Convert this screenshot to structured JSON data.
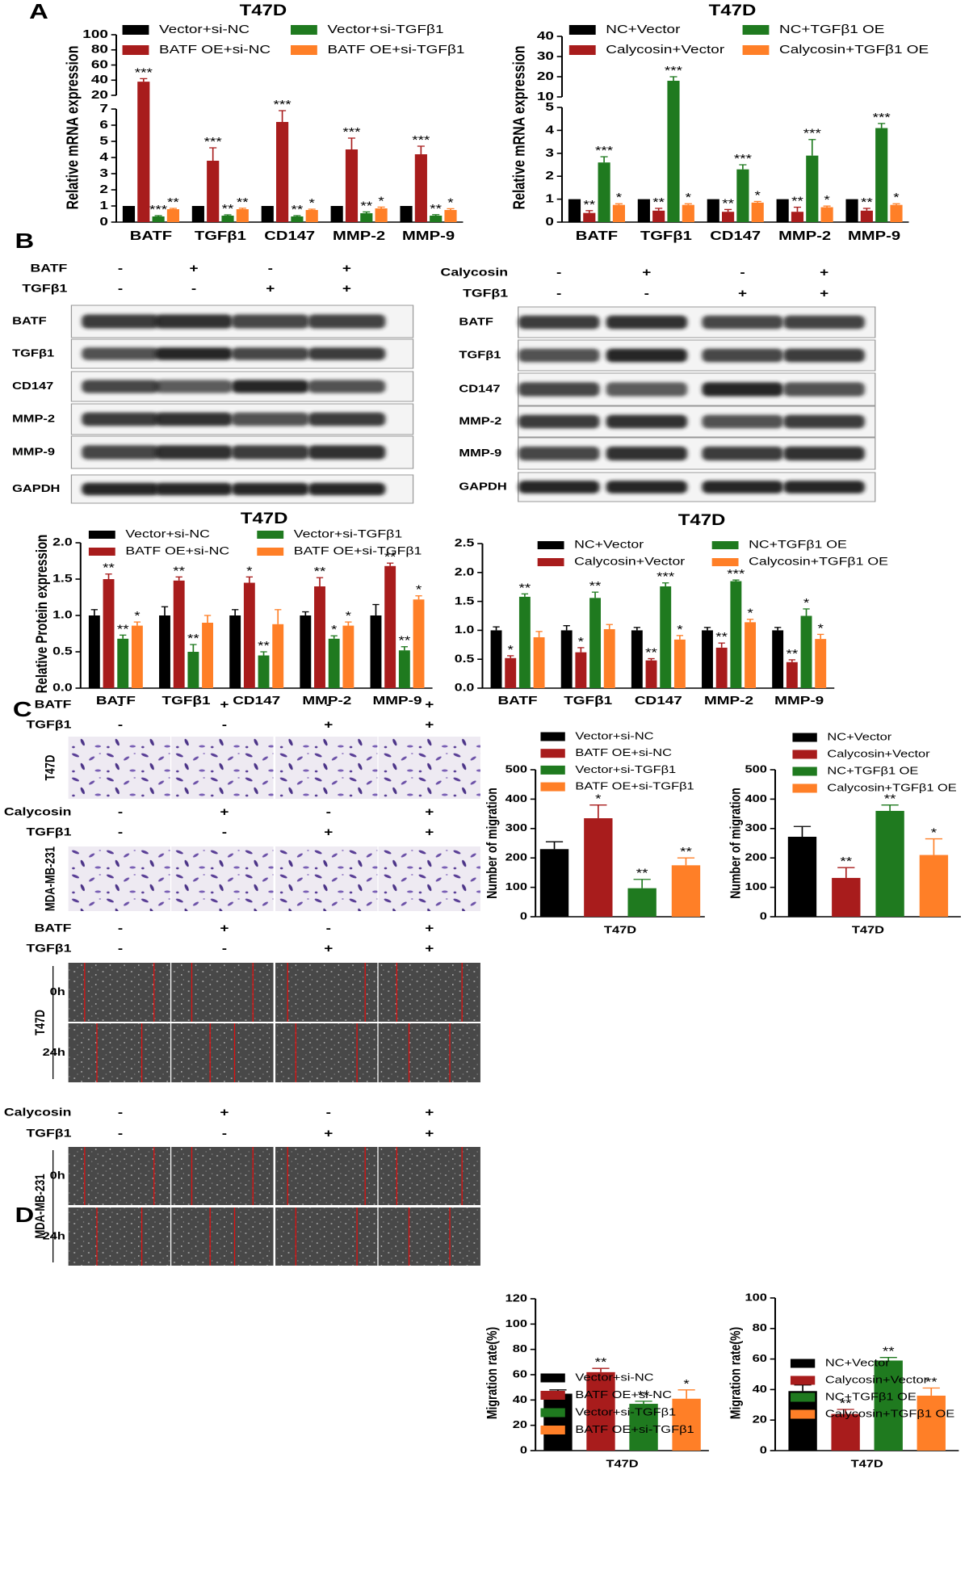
{
  "figure": {
    "panel_letters": [
      "A",
      "B",
      "C",
      "D"
    ],
    "blots": [
      {
        "conditions": [
          {
            "label": "BATF",
            "signs": [
              "-",
              "+",
              "-",
              "+"
            ]
          },
          {
            "label": "TGFβ1",
            "signs": [
              "-",
              "-",
              "+",
              "+"
            ]
          }
        ],
        "bands": [
          "BATF",
          "TGFβ1",
          "CD147",
          "MMP-2",
          "MMP-9",
          "GAPDH"
        ]
      },
      {
        "conditions": [
          {
            "label": "Calycosin",
            "signs": [
              "-",
              "+",
              "-",
              "+"
            ]
          },
          {
            "label": "TGFβ1",
            "signs": [
              "-",
              "-",
              "+",
              "+"
            ]
          }
        ],
        "bands": [
          "BATF",
          "TGFβ1",
          "CD147",
          "MMP-2",
          "MMP-9",
          "GAPDH"
        ]
      }
    ],
    "transwell": [
      {
        "cell_line": "T47D",
        "conditions": [
          {
            "label": "BATF",
            "signs": [
              "-",
              "+",
              "-",
              "+"
            ]
          },
          {
            "label": "TGFβ1",
            "signs": [
              "-",
              "-",
              "+",
              "+"
            ]
          }
        ]
      },
      {
        "cell_line": "MDA-MB-231",
        "conditions": [
          {
            "label": "Calycosin",
            "signs": [
              "-",
              "+",
              "-",
              "+"
            ]
          },
          {
            "label": "TGFβ1",
            "signs": [
              "-",
              "-",
              "+",
              "+"
            ]
          }
        ]
      }
    ],
    "wound_healing": [
      {
        "cell_line": "T47D",
        "times": [
          "0h",
          "24h"
        ],
        "conditions": [
          {
            "label": "BATF",
            "signs": [
              "-",
              "+",
              "-",
              "+"
            ]
          },
          {
            "label": "TGFβ1",
            "signs": [
              "-",
              "-",
              "+",
              "+"
            ]
          }
        ]
      },
      {
        "cell_line": "MDA-MB-231",
        "times": [
          "0h",
          "24h"
        ],
        "conditions": [
          {
            "label": "Calycosin",
            "signs": [
              "-",
              "+",
              "-",
              "+"
            ]
          },
          {
            "label": "TGFβ1",
            "signs": [
              "-",
              "-",
              "+",
              "+"
            ]
          }
        ]
      }
    ]
  },
  "chart_data": [
    {
      "type": "bar",
      "title": "T47D",
      "y_label": "Relative mRNA expression",
      "categories": [
        "BATF",
        "TGFβ1",
        "CD147",
        "MMP-2",
        "MMP-9"
      ],
      "series": [
        {
          "name": "Vector+si-NC",
          "color": "#000000",
          "values": [
            1,
            1,
            1,
            1,
            1
          ]
        },
        {
          "name": "BATF OE+si-NC",
          "color": "#a81c1c",
          "values": [
            38,
            3.8,
            6.2,
            4.5,
            4.2
          ],
          "errors": [
            4,
            0.8,
            0.7,
            0.7,
            0.5
          ],
          "significance": [
            "***",
            "***",
            "***",
            "***",
            "***"
          ]
        },
        {
          "name": "Vector+si-TGFβ1",
          "color": "#1f7a1f",
          "values": [
            0.35,
            0.4,
            0.35,
            0.55,
            0.4
          ],
          "errors": [
            0.05,
            0.05,
            0.05,
            0.08,
            0.06
          ],
          "significance": [
            "***",
            "**",
            "**",
            "**",
            "**"
          ]
        },
        {
          "name": "BATF OE+si-TGFβ1",
          "color": "#ff7f27",
          "values": [
            0.8,
            0.8,
            0.75,
            0.85,
            0.75
          ],
          "errors": [
            0.05,
            0.06,
            0.05,
            0.08,
            0.08
          ],
          "significance": [
            "**",
            "**",
            "*",
            "*",
            "*"
          ]
        }
      ],
      "ylim": [
        0,
        100
      ],
      "ybreak": [
        7,
        20
      ],
      "yticks": [
        0,
        1,
        2,
        3,
        4,
        5,
        6,
        7,
        20,
        40,
        60,
        80,
        100
      ]
    },
    {
      "type": "bar",
      "title": "T47D",
      "y_label": "Relative mRNA expression",
      "categories": [
        "BATF",
        "TGFβ1",
        "CD147",
        "MMP-2",
        "MMP-9"
      ],
      "series": [
        {
          "name": "NC+Vector",
          "color": "#000000",
          "values": [
            1,
            1,
            1,
            1,
            1
          ]
        },
        {
          "name": "Calycosin+Vector",
          "color": "#a81c1c",
          "values": [
            0.4,
            0.5,
            0.45,
            0.45,
            0.5
          ],
          "errors": [
            0.1,
            0.1,
            0.1,
            0.2,
            0.1
          ],
          "significance": [
            "**",
            "**",
            "**",
            "**",
            "**"
          ]
        },
        {
          "name": "NC+TGFβ1 OE",
          "color": "#1f7a1f",
          "values": [
            2.6,
            18,
            2.3,
            2.9,
            4.1
          ],
          "errors": [
            0.25,
            2,
            0.2,
            0.7,
            0.2
          ],
          "significance": [
            "***",
            "***",
            "***",
            "***",
            "***"
          ]
        },
        {
          "name": "Calycosin+TGFβ1 OE",
          "color": "#ff7f27",
          "values": [
            0.75,
            0.75,
            0.85,
            0.65,
            0.75
          ],
          "errors": [
            0.05,
            0.05,
            0.05,
            0.05,
            0.05
          ],
          "significance": [
            "*",
            "*",
            "*",
            "*",
            "*"
          ]
        }
      ],
      "ylim": [
        0,
        40
      ],
      "ybreak": [
        5,
        10
      ],
      "yticks": [
        0,
        1,
        2,
        3,
        4,
        5,
        10,
        20,
        30,
        40
      ]
    },
    {
      "type": "bar",
      "title": "T47D",
      "y_label": "Relative Protein expression",
      "categories": [
        "BATF",
        "TGFβ1",
        "CD147",
        "MMP-2",
        "MMP-9"
      ],
      "series": [
        {
          "name": "Vector+si-NC",
          "color": "#000000",
          "values": [
            1,
            1,
            1,
            1,
            1
          ],
          "errors": [
            0.08,
            0.12,
            0.08,
            0.05,
            0.15
          ]
        },
        {
          "name": "BATF OE+si-NC",
          "color": "#a81c1c",
          "values": [
            1.5,
            1.48,
            1.45,
            1.4,
            1.68
          ],
          "errors": [
            0.07,
            0.05,
            0.08,
            0.12,
            0.04
          ],
          "significance": [
            "**",
            "**",
            "*",
            "**",
            "**"
          ]
        },
        {
          "name": "Vector+si-TGFβ1",
          "color": "#1f7a1f",
          "values": [
            0.68,
            0.5,
            0.45,
            0.68,
            0.52
          ],
          "errors": [
            0.05,
            0.1,
            0.05,
            0.04,
            0.05
          ],
          "significance": [
            "**",
            "**",
            "**",
            "*",
            "**"
          ]
        },
        {
          "name": "BATF OE+si-TGFβ1",
          "color": "#ff7f27",
          "values": [
            0.86,
            0.9,
            0.88,
            0.86,
            1.22
          ],
          "errors": [
            0.05,
            0.1,
            0.2,
            0.05,
            0.05
          ],
          "significance": [
            "*",
            null,
            null,
            "*",
            "*"
          ]
        }
      ],
      "ylim": [
        0,
        2
      ],
      "yticks": [
        {
          "value": 0,
          "label": "0.0"
        },
        0.5,
        {
          "value": 1,
          "label": "1.0"
        },
        1.5,
        {
          "value": 2,
          "label": "2.0"
        }
      ]
    },
    {
      "type": "bar",
      "title": "T47D",
      "categories": [
        "BATF",
        "TGFβ1",
        "CD147",
        "MMP-2",
        "MMP-9"
      ],
      "series": [
        {
          "name": "NC+Vector",
          "color": "#000000",
          "values": [
            1,
            1,
            1,
            1,
            1
          ],
          "errors": [
            0.06,
            0.08,
            0.05,
            0.05,
            0.05
          ]
        },
        {
          "name": "Calycosin+Vector",
          "color": "#a81c1c",
          "values": [
            0.52,
            0.62,
            0.48,
            0.7,
            0.45
          ],
          "errors": [
            0.04,
            0.08,
            0.03,
            0.08,
            0.04
          ],
          "significance": [
            "*",
            "*",
            "**",
            "**",
            "**"
          ]
        },
        {
          "name": "NC+TGFβ1 OE",
          "color": "#1f7a1f",
          "values": [
            1.58,
            1.56,
            1.76,
            1.85,
            1.25
          ],
          "errors": [
            0.05,
            0.1,
            0.06,
            0.02,
            0.12
          ],
          "significance": [
            "**",
            "**",
            "***",
            "***",
            "*"
          ]
        },
        {
          "name": "Calycosin+TGFβ1 OE",
          "color": "#ff7f27",
          "values": [
            0.88,
            1.02,
            0.84,
            1.14,
            0.85
          ],
          "errors": [
            0.1,
            0.08,
            0.07,
            0.05,
            0.08
          ],
          "significance": [
            null,
            null,
            "*",
            "*",
            "*"
          ]
        }
      ],
      "ylim": [
        0,
        2.5
      ],
      "yticks": [
        {
          "value": 0,
          "label": "0.0"
        },
        0.5,
        {
          "value": 1,
          "label": "1.0"
        },
        1.5,
        {
          "value": 2,
          "label": "2.0"
        },
        2.5
      ]
    },
    {
      "type": "bar",
      "y_label": "Number of migration",
      "categories": [
        "T47D"
      ],
      "series": [
        {
          "name": "Vector+si-NC",
          "color": "#000000",
          "values": [
            230
          ],
          "errors": [
            25
          ]
        },
        {
          "name": "BATF OE+si-NC",
          "color": "#a81c1c",
          "values": [
            335
          ],
          "errors": [
            45
          ],
          "significance": [
            "*"
          ]
        },
        {
          "name": "Vector+si-TGFβ1",
          "color": "#1f7a1f",
          "values": [
            97
          ],
          "errors": [
            30
          ],
          "significance": [
            "**"
          ]
        },
        {
          "name": "BATF OE+si-TGFβ1",
          "color": "#ff7f27",
          "values": [
            175
          ],
          "errors": [
            25
          ],
          "significance": [
            "**"
          ]
        }
      ],
      "ylim": [
        0,
        500
      ],
      "yticks": [
        0,
        100,
        200,
        300,
        400,
        500
      ]
    },
    {
      "type": "bar",
      "y_label": "Number of migration",
      "categories": [
        "T47D"
      ],
      "series": [
        {
          "name": "NC+Vector",
          "color": "#000000",
          "values": [
            272
          ],
          "errors": [
            35
          ]
        },
        {
          "name": "Calycosin+Vector",
          "color": "#a81c1c",
          "values": [
            132
          ],
          "errors": [
            35
          ],
          "significance": [
            "**"
          ]
        },
        {
          "name": "NC+TGFβ1 OE",
          "color": "#1f7a1f",
          "values": [
            360
          ],
          "errors": [
            20
          ],
          "significance": [
            "**"
          ]
        },
        {
          "name": "Calycosin+TGFβ1 OE",
          "color": "#ff7f27",
          "values": [
            210
          ],
          "errors": [
            55
          ],
          "significance": [
            "*"
          ]
        }
      ],
      "ylim": [
        0,
        500
      ],
      "yticks": [
        0,
        100,
        200,
        300,
        400,
        500
      ]
    },
    {
      "type": "bar",
      "y_label": "Migration rate(%)",
      "categories": [
        "T47D"
      ],
      "series": [
        {
          "name": "Vector+si-NC",
          "color": "#000000",
          "values": [
            45
          ],
          "errors": [
            3
          ]
        },
        {
          "name": "BATF OE+si-NC",
          "color": "#a81c1c",
          "values": [
            62
          ],
          "errors": [
            3
          ],
          "significance": [
            "**"
          ]
        },
        {
          "name": "Vector+si-TGFβ1",
          "color": "#1f7a1f",
          "values": [
            37
          ],
          "errors": [
            2
          ],
          "significance": [
            "**"
          ]
        },
        {
          "name": "BATF OE+si-TGFβ1",
          "color": "#ff7f27",
          "values": [
            41
          ],
          "errors": [
            7
          ],
          "significance": [
            "*"
          ]
        }
      ],
      "ylim": [
        0,
        120
      ],
      "yticks": [
        0,
        20,
        40,
        60,
        80,
        100,
        120
      ]
    },
    {
      "type": "bar",
      "y_label": "Migration rate(%)",
      "categories": [
        "T47D"
      ],
      "series": [
        {
          "name": "NC+Vector",
          "color": "#000000",
          "values": [
            39
          ],
          "errors": [
            4
          ]
        },
        {
          "name": "Calycosin+Vector",
          "color": "#a81c1c",
          "values": [
            24
          ],
          "errors": [
            3
          ],
          "significance": [
            "**"
          ]
        },
        {
          "name": "NC+TGFβ1 OE",
          "color": "#1f7a1f",
          "values": [
            59
          ],
          "errors": [
            2
          ],
          "significance": [
            "**"
          ]
        },
        {
          "name": "Calycosin+TGFβ1 OE",
          "color": "#ff7f27",
          "values": [
            36
          ],
          "errors": [
            5
          ],
          "significance": [
            "**"
          ]
        }
      ],
      "ylim": [
        0,
        100
      ],
      "yticks": [
        0,
        20,
        40,
        60,
        80,
        100
      ]
    }
  ]
}
